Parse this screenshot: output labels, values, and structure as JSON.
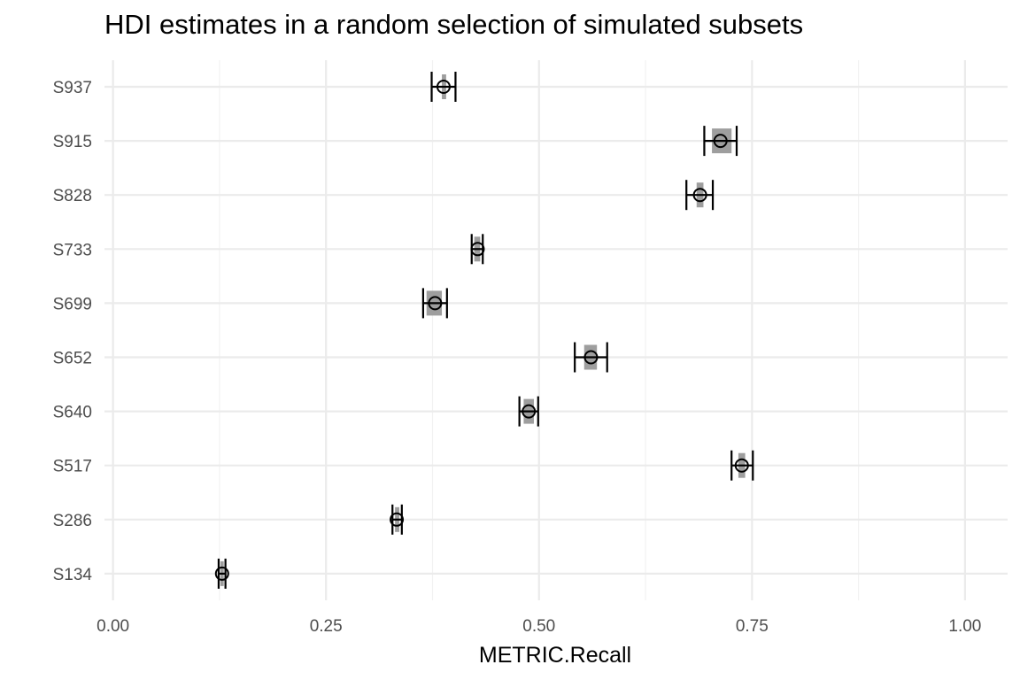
{
  "chart_data": {
    "type": "interval",
    "title": "HDI estimates in a random selection of simulated subsets",
    "xlabel": "METRIC.Recall",
    "ylabel": "",
    "xlim": [
      -0.01,
      1.05
    ],
    "x_ticks": [
      0.0,
      0.25,
      0.5,
      0.75,
      1.0
    ],
    "x_tick_labels": [
      "0.00",
      "0.25",
      "0.50",
      "0.75",
      "1.00"
    ],
    "grid": true,
    "legend": "none",
    "categories": [
      "S937",
      "S915",
      "S828",
      "S733",
      "S699",
      "S652",
      "S640",
      "S517",
      "S286",
      "S134"
    ],
    "points": [
      {
        "label": "S937",
        "estimate": 0.388,
        "hdi_low": 0.374,
        "hdi_high": 0.402,
        "inner_low": 0.386,
        "inner_high": 0.391
      },
      {
        "label": "S915",
        "estimate": 0.713,
        "hdi_low": 0.694,
        "hdi_high": 0.732,
        "inner_low": 0.703,
        "inner_high": 0.726
      },
      {
        "label": "S828",
        "estimate": 0.689,
        "hdi_low": 0.673,
        "hdi_high": 0.704,
        "inner_low": 0.685,
        "inner_high": 0.693
      },
      {
        "label": "S733",
        "estimate": 0.428,
        "hdi_low": 0.421,
        "hdi_high": 0.434,
        "inner_low": 0.424,
        "inner_high": 0.431
      },
      {
        "label": "S699",
        "estimate": 0.378,
        "hdi_low": 0.364,
        "hdi_high": 0.392,
        "inner_low": 0.368,
        "inner_high": 0.386
      },
      {
        "label": "S652",
        "estimate": 0.561,
        "hdi_low": 0.542,
        "hdi_high": 0.58,
        "inner_low": 0.553,
        "inner_high": 0.568
      },
      {
        "label": "S640",
        "estimate": 0.488,
        "hdi_low": 0.477,
        "hdi_high": 0.499,
        "inner_low": 0.482,
        "inner_high": 0.494
      },
      {
        "label": "S517",
        "estimate": 0.738,
        "hdi_low": 0.726,
        "hdi_high": 0.751,
        "inner_low": 0.734,
        "inner_high": 0.742
      },
      {
        "label": "S286",
        "estimate": 0.333,
        "hdi_low": 0.328,
        "hdi_high": 0.339,
        "inner_low": 0.331,
        "inner_high": 0.336
      },
      {
        "label": "S134",
        "estimate": 0.128,
        "hdi_low": 0.124,
        "hdi_high": 0.132,
        "inner_low": 0.126,
        "inner_high": 0.13
      }
    ],
    "colors": {
      "grid_major": "#ebebeb",
      "grid_minor": "#f2f2f2",
      "inner_band": "#9e9e9e",
      "interval": "#000000",
      "point_stroke": "#000000",
      "point_fill": "#ffffff",
      "tick_text": "#4d4d4d"
    }
  }
}
